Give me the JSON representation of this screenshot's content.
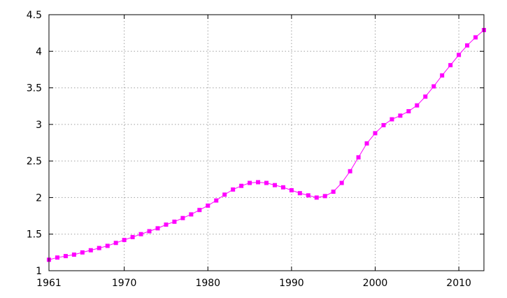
{
  "chart_data": {
    "type": "line",
    "title": "",
    "xlabel": "",
    "ylabel": "",
    "xlim": [
      1961,
      2013
    ],
    "ylim": [
      1,
      4.5
    ],
    "x_ticks": [
      1961,
      1970,
      1980,
      1990,
      2000,
      2010
    ],
    "x_tick_labels": [
      "1961",
      "1970",
      "1980",
      "1990",
      "2000",
      "2010"
    ],
    "y_ticks": [
      1,
      1.5,
      2,
      2.5,
      3,
      3.5,
      4,
      4.5
    ],
    "y_tick_labels": [
      "1",
      "1.5",
      "2",
      "2.5",
      "3",
      "3.5",
      "4",
      "4.5"
    ],
    "grid": true,
    "legend": "none",
    "series": [
      {
        "color": "#ff00ff",
        "marker": "square",
        "x": [
          1961,
          1962,
          1963,
          1964,
          1965,
          1966,
          1967,
          1968,
          1969,
          1970,
          1971,
          1972,
          1973,
          1974,
          1975,
          1976,
          1977,
          1978,
          1979,
          1980,
          1981,
          1982,
          1983,
          1984,
          1985,
          1986,
          1987,
          1988,
          1989,
          1990,
          1991,
          1992,
          1993,
          1994,
          1995,
          1996,
          1997,
          1998,
          1999,
          2000,
          2001,
          2002,
          2003,
          2004,
          2005,
          2006,
          2007,
          2008,
          2009,
          2010,
          2011,
          2012,
          2013
        ],
        "y": [
          1.15,
          1.18,
          1.2,
          1.22,
          1.25,
          1.28,
          1.31,
          1.34,
          1.38,
          1.42,
          1.46,
          1.5,
          1.54,
          1.58,
          1.63,
          1.67,
          1.72,
          1.77,
          1.83,
          1.89,
          1.96,
          2.04,
          2.11,
          2.16,
          2.2,
          2.21,
          2.2,
          2.17,
          2.14,
          2.1,
          2.06,
          2.03,
          2.0,
          2.02,
          2.08,
          2.2,
          2.36,
          2.55,
          2.74,
          2.88,
          2.99,
          3.07,
          3.12,
          3.18,
          3.26,
          3.38,
          3.52,
          3.67,
          3.81,
          3.95,
          4.08,
          4.19,
          4.29
        ]
      }
    ]
  }
}
